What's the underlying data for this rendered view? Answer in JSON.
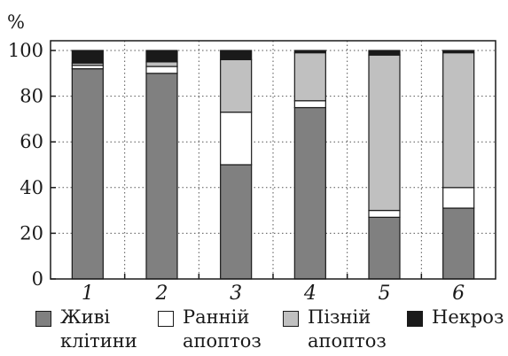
{
  "chart_data": {
    "type": "bar",
    "stacked": true,
    "title": "",
    "xlabel": "",
    "ylabel": "%",
    "ylim": [
      0,
      100
    ],
    "yticks": [
      0,
      20,
      40,
      60,
      80,
      100
    ],
    "grid": true,
    "categories": [
      "1",
      "2",
      "3",
      "4",
      "5",
      "6"
    ],
    "series": [
      {
        "name": "Живі клітини",
        "color": "#808080",
        "values": [
          92,
          90,
          50,
          75,
          27,
          31
        ]
      },
      {
        "name": "Ранній апоптоз",
        "color": "#ffffff",
        "values": [
          1.5,
          3,
          23,
          3,
          3,
          9
        ]
      },
      {
        "name": "Пізній апоптоз",
        "color": "#c0c0c0",
        "values": [
          1,
          2,
          23,
          21,
          68,
          59
        ]
      },
      {
        "name": "Некроз",
        "color": "#1a1a1a",
        "values": [
          5.5,
          5,
          4,
          1,
          2,
          1
        ]
      }
    ],
    "legend_position": "bottom"
  },
  "legend": [
    {
      "label": "Живі\nклітини"
    },
    {
      "label": "Ранній\nапоптоз"
    },
    {
      "label": "Пізній\nапоптоз"
    },
    {
      "label": "Некроз"
    }
  ]
}
